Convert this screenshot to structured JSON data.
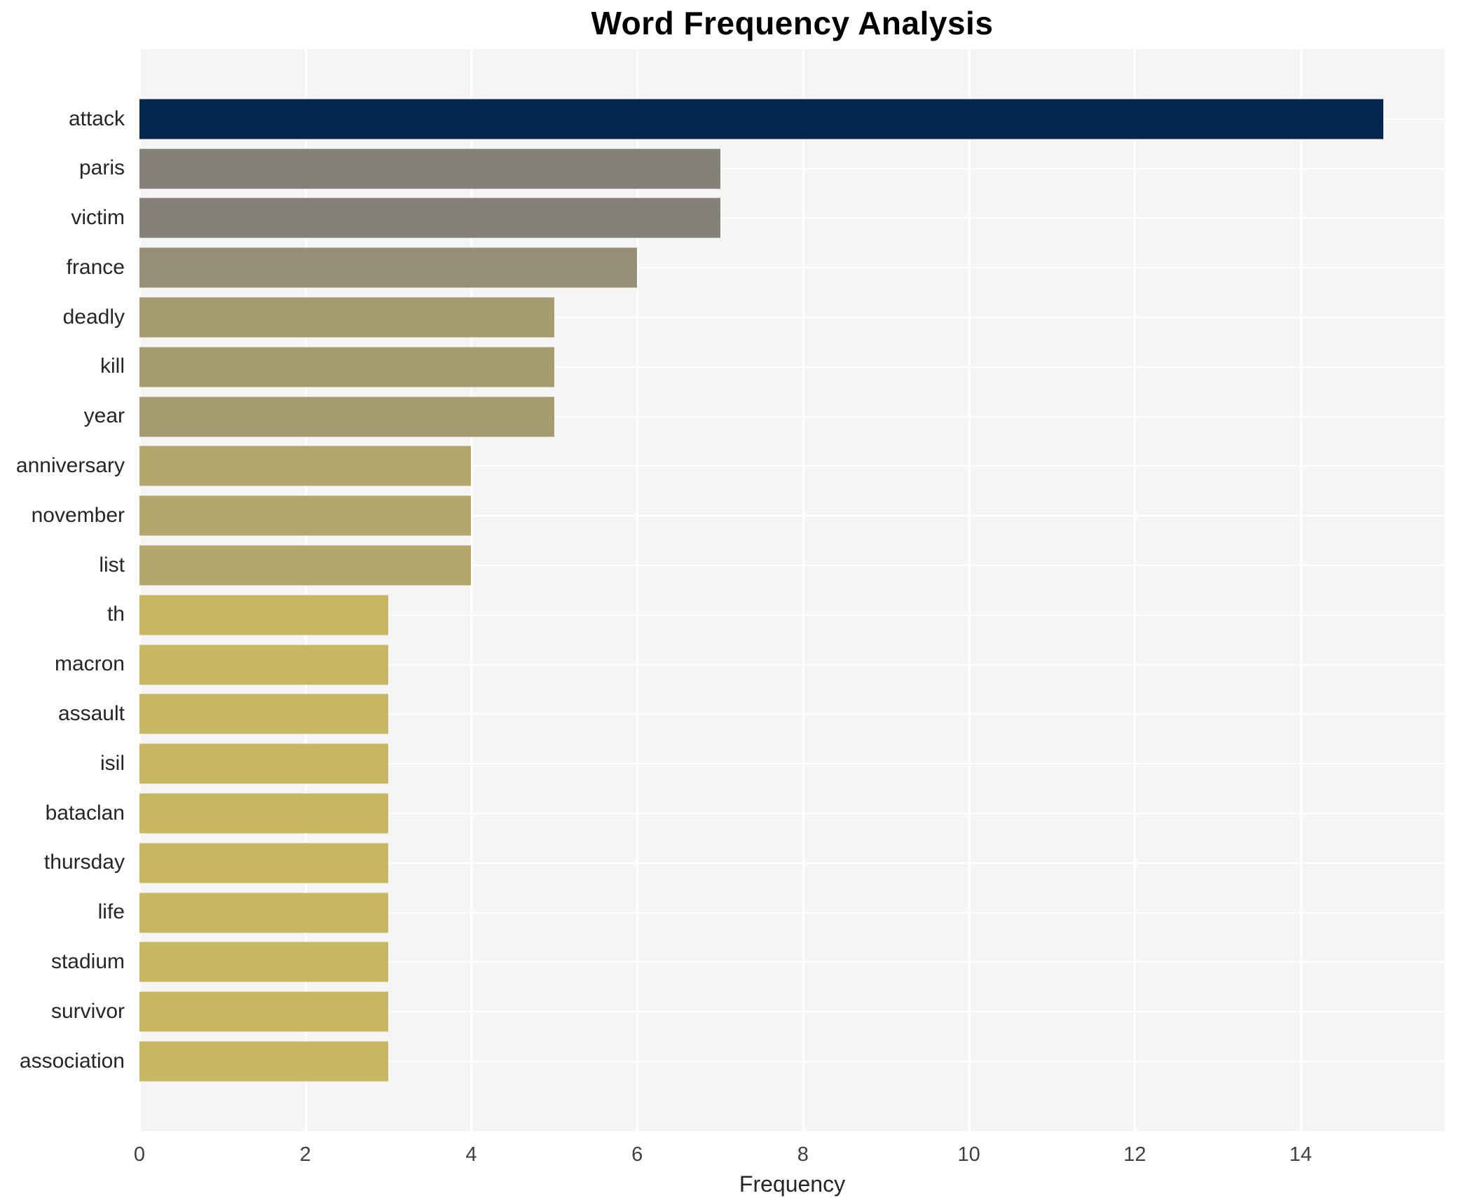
{
  "chart_data": {
    "type": "bar",
    "orientation": "horizontal",
    "title": "Word Frequency Analysis",
    "xlabel": "Frequency",
    "ylabel": "",
    "categories": [
      "attack",
      "paris",
      "victim",
      "france",
      "deadly",
      "kill",
      "year",
      "anniversary",
      "november",
      "list",
      "th",
      "macron",
      "assault",
      "isil",
      "bataclan",
      "thursday",
      "life",
      "stadium",
      "survivor",
      "association"
    ],
    "values": [
      15,
      7,
      7,
      6,
      5,
      5,
      5,
      4,
      4,
      4,
      3,
      3,
      3,
      3,
      3,
      3,
      3,
      3,
      3,
      3
    ],
    "bar_colors": [
      "#03254e",
      "#838179",
      "#838179",
      "#968f75",
      "#a49b71",
      "#a49b71",
      "#a49b71",
      "#b3a86b",
      "#b3a86b",
      "#b3a86b",
      "#c8b762",
      "#c8b762",
      "#c8b762",
      "#c8b762",
      "#c8b762",
      "#c8b762",
      "#c8b762",
      "#c8b762",
      "#c8b762",
      "#c8b762"
    ],
    "xticks": [
      0,
      2,
      4,
      6,
      8,
      10,
      12,
      14
    ],
    "xlim": [
      0,
      15.74
    ],
    "grid": true,
    "legend": null,
    "colors": {
      "panel_background": "#f5f5f6",
      "gridline": "#ffffff",
      "title_text": "#000000",
      "axis_text": "#404040",
      "category_text": "#262626"
    }
  }
}
